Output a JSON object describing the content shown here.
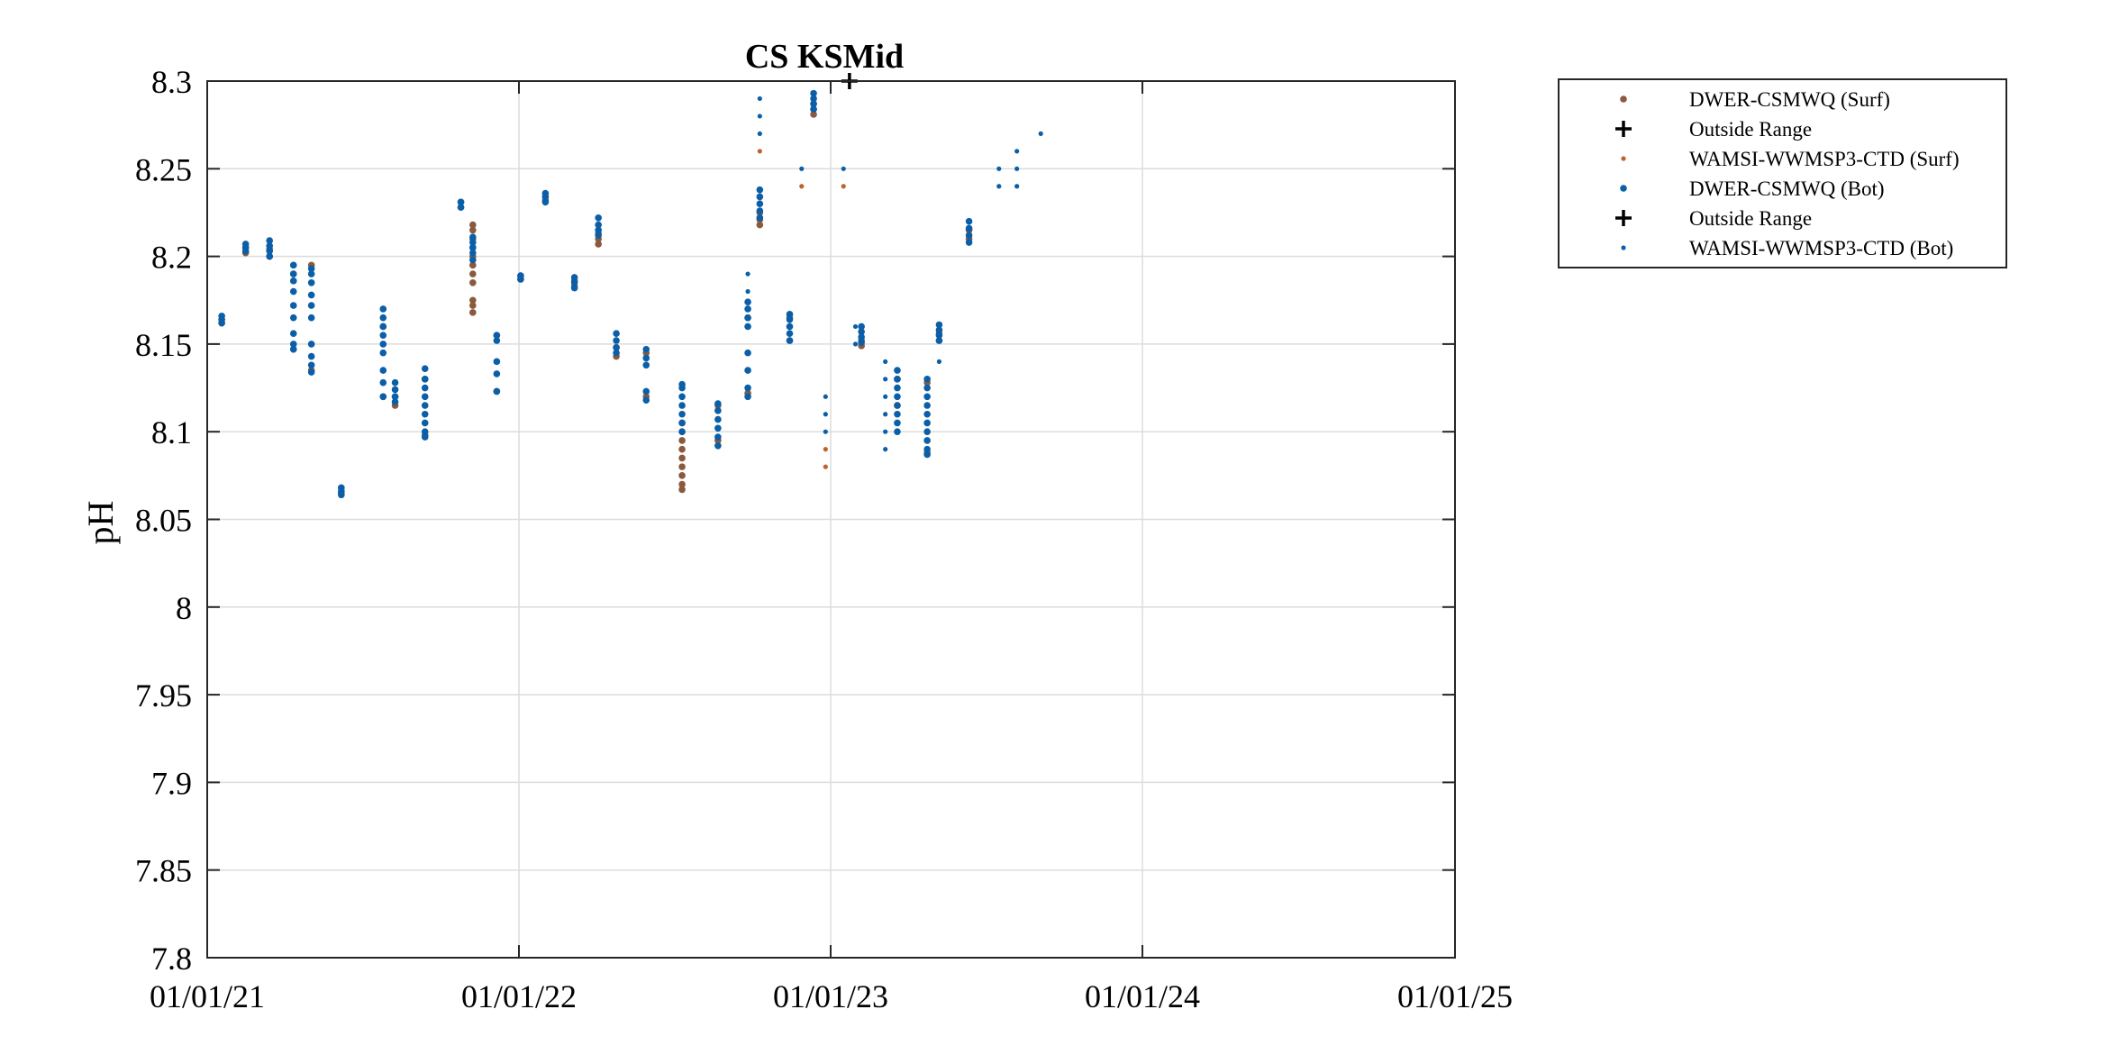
{
  "chart_data": {
    "type": "scatter",
    "title": "CS KSMid",
    "xlabel": "",
    "ylabel": "pH",
    "xlim": [
      "2021-01-01",
      "2025-01-01"
    ],
    "ylim": [
      7.8,
      8.3
    ],
    "x_ticks": [
      {
        "date": "2021-01-01",
        "label": "01/01/21"
      },
      {
        "date": "2022-01-01",
        "label": "01/01/22"
      },
      {
        "date": "2023-01-01",
        "label": "01/01/23"
      },
      {
        "date": "2024-01-01",
        "label": "01/01/24"
      },
      {
        "date": "2025-01-01",
        "label": "01/01/25"
      }
    ],
    "y_ticks": [
      7.8,
      7.85,
      7.9,
      7.95,
      8,
      8.05,
      8.1,
      8.15,
      8.2,
      8.25,
      8.3
    ],
    "y_tick_labels": [
      "7.8",
      "7.85",
      "7.9",
      "7.95",
      "8",
      "8.05",
      "8.1",
      "8.15",
      "8.2",
      "8.25",
      "8.3"
    ],
    "grid": true,
    "legend_position": "outside-top-right",
    "colors": {
      "surface": "#8b5a3c",
      "bottom": "#0b5fa8",
      "wamsi_surf": "#c0622d",
      "outside": "#000000"
    },
    "series": [
      {
        "name": "DWER-CSMWQ (Surf)",
        "marker": "dot-large",
        "color": "#8b5a3c",
        "points": [
          {
            "x": "2021-01-18",
            "y": [
              8.162,
              8.164
            ]
          },
          {
            "x": "2021-02-15",
            "y": [
              8.202,
              8.205
            ]
          },
          {
            "x": "2021-03-15",
            "y": [
              8.2,
              8.204
            ]
          },
          {
            "x": "2021-04-12",
            "y": [
              8.147,
              8.19
            ]
          },
          {
            "x": "2021-05-03",
            "y": [
              8.135,
              8.195
            ]
          },
          {
            "x": "2021-06-07",
            "y": [
              8.065,
              8.068
            ]
          },
          {
            "x": "2021-07-26",
            "y": [
              8.12,
              8.16
            ]
          },
          {
            "x": "2021-08-09",
            "y": [
              8.115,
              8.12
            ]
          },
          {
            "x": "2021-09-13",
            "y": [
              8.098,
              8.13
            ]
          },
          {
            "x": "2021-10-25",
            "y": [
              8.228,
              8.231
            ]
          },
          {
            "x": "2021-11-08",
            "y": [
              8.168,
              8.172,
              8.175,
              8.185,
              8.19,
              8.195,
              8.2,
              8.205,
              8.21,
              8.215,
              8.218
            ]
          },
          {
            "x": "2021-12-06",
            "y": [
              8.123,
              8.155
            ]
          },
          {
            "x": "2022-01-03",
            "y": [
              8.187,
              8.189
            ]
          },
          {
            "x": "2022-02-01",
            "y": [
              8.232,
              8.234
            ]
          },
          {
            "x": "2022-03-07",
            "y": [
              8.183,
              8.186
            ]
          },
          {
            "x": "2022-04-04",
            "y": [
              8.207,
              8.21,
              8.213
            ]
          },
          {
            "x": "2022-04-25",
            "y": [
              8.143,
              8.148
            ]
          },
          {
            "x": "2022-05-30",
            "y": [
              8.12,
              8.145
            ]
          },
          {
            "x": "2022-07-11",
            "y": [
              8.067,
              8.07,
              8.075,
              8.08,
              8.085,
              8.09,
              8.095,
              8.1,
              8.105
            ]
          },
          {
            "x": "2022-08-22",
            "y": [
              8.095,
              8.115
            ]
          },
          {
            "x": "2022-09-26",
            "y": [
              8.122,
              8.165
            ]
          },
          {
            "x": "2022-10-10",
            "y": [
              8.218,
              8.221,
              8.225
            ]
          },
          {
            "x": "2022-11-14",
            "y": [
              8.152,
              8.165
            ]
          },
          {
            "x": "2022-12-12",
            "y": [
              8.281,
              8.284,
              8.287
            ]
          },
          {
            "x": "2023-02-06",
            "y": [
              8.149,
              8.152
            ]
          },
          {
            "x": "2023-03-20",
            "y": [
              8.115,
              8.13
            ]
          },
          {
            "x": "2023-04-24",
            "y": [
              8.088,
              8.128
            ]
          },
          {
            "x": "2023-05-08",
            "y": [
              8.152,
              8.156
            ]
          },
          {
            "x": "2023-06-12",
            "y": [
              8.21,
              8.215
            ]
          }
        ]
      },
      {
        "name": "Outside Range",
        "marker": "plus",
        "color": "#000000",
        "points": [
          {
            "x": "2023-01-23",
            "y": [
              8.3
            ]
          }
        ]
      },
      {
        "name": "WAMSI-WWMSP3-CTD (Surf)",
        "marker": "dot-small",
        "color": "#c0622d",
        "points": [
          {
            "x": "2022-10-10",
            "y": [
              8.26
            ]
          },
          {
            "x": "2022-11-28",
            "y": [
              8.24
            ]
          },
          {
            "x": "2022-12-26",
            "y": [
              8.08,
              8.09
            ]
          },
          {
            "x": "2023-01-16",
            "y": [
              8.24
            ]
          }
        ]
      },
      {
        "name": "DWER-CSMWQ (Bot)",
        "marker": "dot-large",
        "color": "#0b5fa8",
        "points": [
          {
            "x": "2021-01-18",
            "y": [
              8.162,
              8.164,
              8.166
            ]
          },
          {
            "x": "2021-02-15",
            "y": [
              8.203,
              8.205,
              8.207
            ]
          },
          {
            "x": "2021-03-15",
            "y": [
              8.2,
              8.203,
              8.206,
              8.209
            ]
          },
          {
            "x": "2021-04-12",
            "y": [
              8.147,
              8.15,
              8.156,
              8.165,
              8.172,
              8.18,
              8.186,
              8.19,
              8.195
            ]
          },
          {
            "x": "2021-05-03",
            "y": [
              8.134,
              8.138,
              8.143,
              8.15,
              8.165,
              8.172,
              8.178,
              8.185,
              8.19,
              8.193
            ]
          },
          {
            "x": "2021-06-07",
            "y": [
              8.064,
              8.066,
              8.068
            ]
          },
          {
            "x": "2021-07-26",
            "y": [
              8.12,
              8.128,
              8.135,
              8.145,
              8.15,
              8.155,
              8.16,
              8.165,
              8.17
            ]
          },
          {
            "x": "2021-08-09",
            "y": [
              8.117,
              8.12,
              8.124,
              8.128
            ]
          },
          {
            "x": "2021-09-13",
            "y": [
              8.097,
              8.1,
              8.105,
              8.11,
              8.115,
              8.12,
              8.125,
              8.13,
              8.136
            ]
          },
          {
            "x": "2021-10-25",
            "y": [
              8.228,
              8.231
            ]
          },
          {
            "x": "2021-11-08",
            "y": [
              8.198,
              8.202,
              8.205,
              8.208,
              8.211
            ]
          },
          {
            "x": "2021-12-06",
            "y": [
              8.123,
              8.133,
              8.14,
              8.152,
              8.155
            ]
          },
          {
            "x": "2022-01-03",
            "y": [
              8.187,
              8.189
            ]
          },
          {
            "x": "2022-02-01",
            "y": [
              8.231,
              8.234,
              8.236
            ]
          },
          {
            "x": "2022-03-07",
            "y": [
              8.182,
              8.185,
              8.188
            ]
          },
          {
            "x": "2022-04-04",
            "y": [
              8.212,
              8.215,
              8.218,
              8.222
            ]
          },
          {
            "x": "2022-04-25",
            "y": [
              8.145,
              8.148,
              8.152,
              8.156
            ]
          },
          {
            "x": "2022-05-30",
            "y": [
              8.118,
              8.123,
              8.138,
              8.142,
              8.147
            ]
          },
          {
            "x": "2022-07-11",
            "y": [
              8.1,
              8.105,
              8.11,
              8.115,
              8.12,
              8.125,
              8.127
            ]
          },
          {
            "x": "2022-08-22",
            "y": [
              8.092,
              8.097,
              8.102,
              8.107,
              8.112,
              8.116
            ]
          },
          {
            "x": "2022-09-26",
            "y": [
              8.12,
              8.125,
              8.135,
              8.145,
              8.16,
              8.165,
              8.17,
              8.174
            ]
          },
          {
            "x": "2022-10-10",
            "y": [
              8.222,
              8.226,
              8.23,
              8.234,
              8.238
            ]
          },
          {
            "x": "2022-11-14",
            "y": [
              8.152,
              8.156,
              8.16,
              8.164,
              8.167
            ]
          },
          {
            "x": "2022-12-12",
            "y": [
              8.284,
              8.287,
              8.29,
              8.293
            ]
          },
          {
            "x": "2023-02-06",
            "y": [
              8.151,
              8.154,
              8.157,
              8.16
            ]
          },
          {
            "x": "2023-03-20",
            "y": [
              8.1,
              8.105,
              8.11,
              8.115,
              8.12,
              8.125,
              8.13,
              8.135
            ]
          },
          {
            "x": "2023-04-24",
            "y": [
              8.087,
              8.09,
              8.095,
              8.1,
              8.105,
              8.11,
              8.115,
              8.12,
              8.125,
              8.13
            ]
          },
          {
            "x": "2023-05-08",
            "y": [
              8.152,
              8.155,
              8.158,
              8.161
            ]
          },
          {
            "x": "2023-06-12",
            "y": [
              8.208,
              8.212,
              8.216,
              8.22
            ]
          }
        ]
      },
      {
        "name": "Outside Range",
        "marker": "plus",
        "color": "#000000",
        "points": []
      },
      {
        "name": "WAMSI-WWMSP3-CTD (Bot)",
        "marker": "dot-small",
        "color": "#0b5fa8",
        "points": [
          {
            "x": "2022-09-26",
            "y": [
              8.18,
              8.19
            ]
          },
          {
            "x": "2022-10-10",
            "y": [
              8.27,
              8.28,
              8.29
            ]
          },
          {
            "x": "2022-11-28",
            "y": [
              8.25
            ]
          },
          {
            "x": "2022-12-26",
            "y": [
              8.1,
              8.11,
              8.12
            ]
          },
          {
            "x": "2023-01-16",
            "y": [
              8.25
            ]
          },
          {
            "x": "2023-01-30",
            "y": [
              8.15,
              8.16
            ]
          },
          {
            "x": "2023-03-06",
            "y": [
              8.09,
              8.1,
              8.11,
              8.12,
              8.13,
              8.14
            ]
          },
          {
            "x": "2023-05-08",
            "y": [
              8.14
            ]
          },
          {
            "x": "2023-07-17",
            "y": [
              8.24,
              8.25
            ]
          },
          {
            "x": "2023-08-07",
            "y": [
              8.24,
              8.25,
              8.26
            ]
          },
          {
            "x": "2023-09-04",
            "y": [
              8.27
            ]
          }
        ]
      }
    ]
  }
}
